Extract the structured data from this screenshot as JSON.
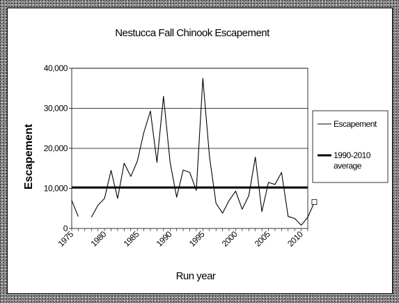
{
  "chart_data": {
    "type": "line",
    "title": "Nestucca Fall Chinook Escapement",
    "xlabel": "Run year",
    "ylabel": "Escapement",
    "xlim": [
      1975,
      2011
    ],
    "ylim": [
      0,
      40000
    ],
    "x_ticks": [
      "1975",
      "1980",
      "1985",
      "1990",
      "1995",
      "2000",
      "2005",
      "2010"
    ],
    "y_ticks": [
      "0",
      "10,000",
      "20,000",
      "30,000",
      "40,000"
    ],
    "grid": true,
    "legend_position": "right",
    "series": [
      {
        "name": "Escapement",
        "color": "#000000",
        "points": [
          [
            1975,
            7000
          ],
          [
            1976,
            3000
          ],
          [
            1977,
            null
          ],
          [
            1978,
            2800
          ],
          [
            1979,
            5800
          ],
          [
            1980,
            7500
          ],
          [
            1981,
            14500
          ],
          [
            1982,
            7500
          ],
          [
            1983,
            16300
          ],
          [
            1984,
            13000
          ],
          [
            1985,
            16800
          ],
          [
            1986,
            24000
          ],
          [
            1987,
            29300
          ],
          [
            1988,
            16500
          ],
          [
            1989,
            33000
          ],
          [
            1990,
            16500
          ],
          [
            1991,
            7800
          ],
          [
            1992,
            14600
          ],
          [
            1993,
            14000
          ],
          [
            1994,
            9500
          ],
          [
            1995,
            37500
          ],
          [
            1996,
            18000
          ],
          [
            1997,
            6300
          ],
          [
            1998,
            3800
          ],
          [
            1999,
            7000
          ],
          [
            2000,
            9300
          ],
          [
            2001,
            4800
          ],
          [
            2002,
            8200
          ],
          [
            2003,
            17800
          ],
          [
            2004,
            4200
          ],
          [
            2005,
            11500
          ],
          [
            2006,
            11000
          ],
          [
            2007,
            14000
          ],
          [
            2008,
            3000
          ],
          [
            2009,
            2500
          ],
          [
            2010,
            800
          ],
          [
            2011,
            2800
          ],
          [
            2012,
            6500
          ]
        ]
      },
      {
        "name": "1990-2010 average",
        "color": "#000000",
        "value": 10300
      }
    ]
  }
}
